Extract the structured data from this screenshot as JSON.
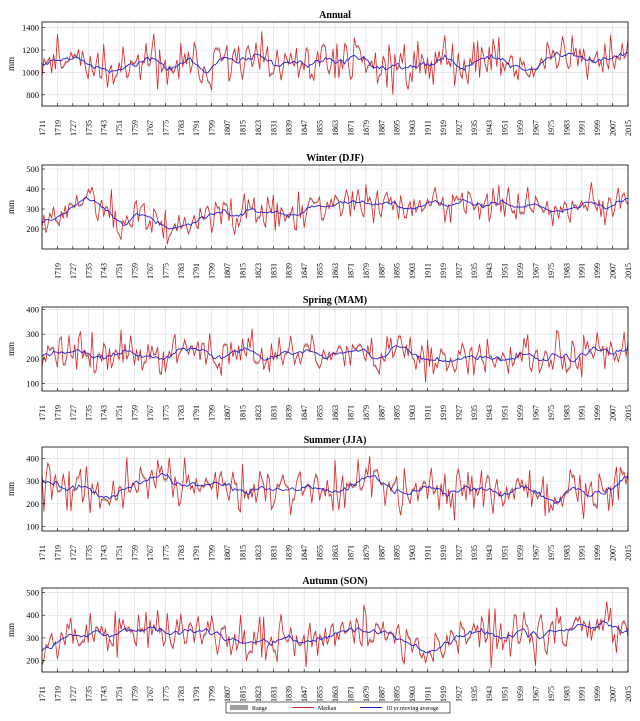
{
  "chart_data": {
    "type": "line",
    "x_ticks": [
      1711,
      1719,
      1727,
      1735,
      1743,
      1751,
      1759,
      1767,
      1775,
      1783,
      1791,
      1799,
      1807,
      1815,
      1823,
      1831,
      1839,
      1847,
      1855,
      1863,
      1871,
      1879,
      1887,
      1895,
      1903,
      1911,
      1919,
      1927,
      1935,
      1943,
      1951,
      1959,
      1967,
      1975,
      1983,
      1991,
      1999,
      2007,
      2015
    ],
    "xlim": [
      1711,
      2015
    ],
    "legend": {
      "placement": "bottom-center",
      "entries": [
        {
          "name": "Range",
          "color": "#a0a0a0",
          "style": "band"
        },
        {
          "name": "Median",
          "color": "#d62728",
          "style": "line"
        },
        {
          "name": "10 yr moving average",
          "color": "#1f1fd0",
          "style": "line"
        }
      ]
    },
    "panels": [
      {
        "title": "Annual",
        "ylabel": "mm",
        "ylim": [
          700,
          1450
        ],
        "y_ticks": [
          800,
          1000,
          1200,
          1400
        ],
        "baseline": 1080,
        "amplitude": 135,
        "seed": 11,
        "trend": [
          [
            1711,
            1090
          ],
          [
            1730,
            1150
          ],
          [
            1745,
            1020
          ],
          [
            1760,
            1090
          ],
          [
            1780,
            1030
          ],
          [
            1800,
            1080
          ],
          [
            1815,
            1100
          ],
          [
            1835,
            1050
          ],
          [
            1850,
            1060
          ],
          [
            1870,
            1150
          ],
          [
            1890,
            1040
          ],
          [
            1910,
            1080
          ],
          [
            1930,
            1130
          ],
          [
            1950,
            1090
          ],
          [
            1965,
            1030
          ],
          [
            1980,
            1130
          ],
          [
            2000,
            1110
          ],
          [
            2015,
            1200
          ]
        ],
        "x_tick_rotation_from": 1711
      },
      {
        "title": "Winter (DJF)",
        "ylabel": "mm",
        "ylim": [
          100,
          520
        ],
        "y_ticks": [
          200,
          300,
          400,
          500
        ],
        "baseline": 290,
        "amplitude": 60,
        "seed": 23,
        "trend": [
          [
            1711,
            240
          ],
          [
            1725,
            300
          ],
          [
            1735,
            380
          ],
          [
            1742,
            270
          ],
          [
            1760,
            250
          ],
          [
            1780,
            200
          ],
          [
            1795,
            280
          ],
          [
            1815,
            280
          ],
          [
            1835,
            260
          ],
          [
            1850,
            290
          ],
          [
            1870,
            340
          ],
          [
            1890,
            290
          ],
          [
            1910,
            320
          ],
          [
            1930,
            330
          ],
          [
            1950,
            320
          ],
          [
            1970,
            300
          ],
          [
            1990,
            340
          ],
          [
            2005,
            300
          ],
          [
            2015,
            360
          ]
        ]
      },
      {
        "title": "Spring (MAM)",
        "ylabel": "mm",
        "ylim": [
          70,
          410
        ],
        "y_ticks": [
          100,
          200,
          300,
          400
        ],
        "baseline": 215,
        "amplitude": 55,
        "seed": 37,
        "trend": [
          [
            1711,
            240
          ],
          [
            1730,
            230
          ],
          [
            1745,
            200
          ],
          [
            1755,
            240
          ],
          [
            1770,
            190
          ],
          [
            1790,
            220
          ],
          [
            1800,
            200
          ],
          [
            1815,
            250
          ],
          [
            1830,
            200
          ],
          [
            1845,
            210
          ],
          [
            1860,
            230
          ],
          [
            1880,
            210
          ],
          [
            1900,
            220
          ],
          [
            1920,
            215
          ],
          [
            1940,
            210
          ],
          [
            1960,
            220
          ],
          [
            1975,
            200
          ],
          [
            1990,
            245
          ],
          [
            2015,
            230
          ]
        ]
      },
      {
        "title": "Summer (JJA)",
        "ylabel": "mm",
        "ylim": [
          80,
          450
        ],
        "y_ticks": [
          100,
          200,
          300,
          400
        ],
        "baseline": 260,
        "amplitude": 65,
        "seed": 41,
        "trend": [
          [
            1711,
            270
          ],
          [
            1730,
            270
          ],
          [
            1745,
            240
          ],
          [
            1765,
            310
          ],
          [
            1780,
            300
          ],
          [
            1795,
            300
          ],
          [
            1810,
            250
          ],
          [
            1830,
            260
          ],
          [
            1850,
            270
          ],
          [
            1865,
            260
          ],
          [
            1880,
            290
          ],
          [
            1900,
            270
          ],
          [
            1920,
            250
          ],
          [
            1935,
            240
          ],
          [
            1950,
            260
          ],
          [
            1965,
            250
          ],
          [
            1975,
            210
          ],
          [
            1990,
            230
          ],
          [
            2005,
            260
          ],
          [
            2015,
            260
          ]
        ]
      },
      {
        "title": "Autumn (SON)",
        "ylabel": "mm",
        "ylim": [
          150,
          520
        ],
        "y_ticks": [
          200,
          300,
          400,
          500
        ],
        "baseline": 305,
        "amplitude": 65,
        "seed": 53,
        "trend": [
          [
            1711,
            290
          ],
          [
            1730,
            330
          ],
          [
            1745,
            300
          ],
          [
            1765,
            340
          ],
          [
            1780,
            330
          ],
          [
            1800,
            300
          ],
          [
            1815,
            310
          ],
          [
            1835,
            300
          ],
          [
            1850,
            290
          ],
          [
            1870,
            330
          ],
          [
            1890,
            300
          ],
          [
            1910,
            280
          ],
          [
            1930,
            310
          ],
          [
            1950,
            310
          ],
          [
            1965,
            300
          ],
          [
            1980,
            320
          ],
          [
            2000,
            340
          ],
          [
            2015,
            330
          ]
        ]
      }
    ]
  }
}
